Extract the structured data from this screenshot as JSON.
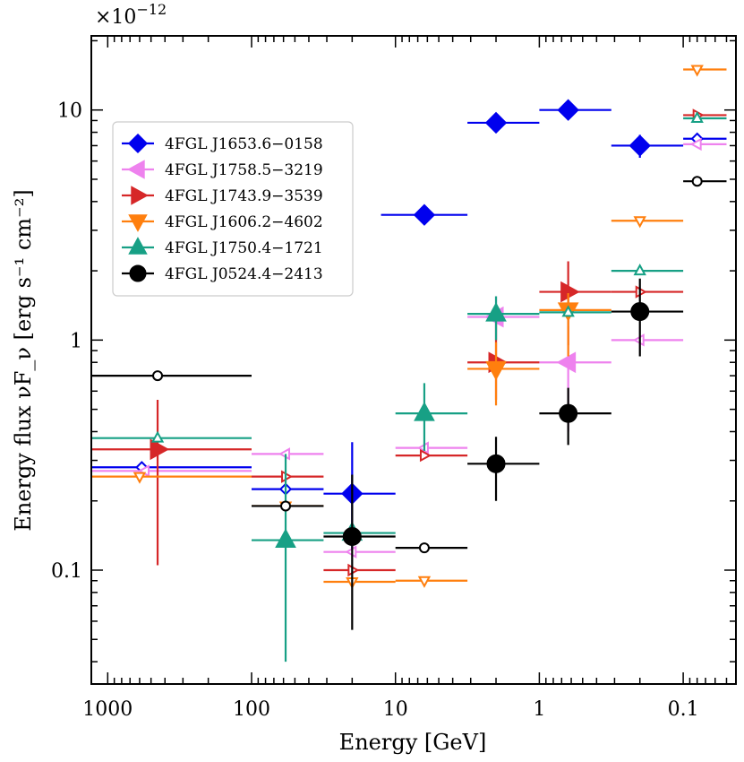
{
  "chart_data": {
    "type": "scatter",
    "title": "",
    "xlabel": "Energy [GeV]",
    "ylabel": "Energy flux νF_ν [erg s⁻¹ cm⁻²]",
    "y_multiplier_base": "×10",
    "y_multiplier_exp": "−12",
    "x_scale": "log",
    "y_scale": "log",
    "x_inverted": true,
    "xlim": [
      1300,
      0.043
    ],
    "ylim": [
      0.032,
      21
    ],
    "x_ticks": [
      {
        "value": 1000,
        "label": "1000"
      },
      {
        "value": 100,
        "label": "100"
      },
      {
        "value": 10,
        "label": "10"
      },
      {
        "value": 1,
        "label": "1"
      },
      {
        "value": 0.1,
        "label": "0.1"
      }
    ],
    "y_ticks": [
      {
        "value": 0.1,
        "label": "0.1"
      },
      {
        "value": 1,
        "label": "1"
      },
      {
        "value": 10,
        "label": "10"
      }
    ],
    "legend_position": "upper-left",
    "series": [
      {
        "name": "4FGL J1653.6−0158",
        "color": "#0000ee",
        "marker": "diamond",
        "points": [
          {
            "x": 6.3,
            "xlo": 3.16,
            "xhi": 12.6,
            "y": 3.5
          },
          {
            "x": 2.0,
            "xlo": 1.0,
            "xhi": 3.16,
            "y": 8.8
          },
          {
            "x": 0.63,
            "xlo": 0.316,
            "xhi": 1.0,
            "y": 10.0
          },
          {
            "x": 0.2,
            "xlo": 0.1,
            "xhi": 0.316,
            "y": 7.0,
            "ylo": 6.2,
            "yhi": 7.8
          },
          {
            "x": 20,
            "xlo": 10,
            "xhi": 31.6,
            "y": 0.215,
            "ylo": 0.12,
            "yhi": 0.36
          }
        ],
        "upper_limits": [
          {
            "x": 580,
            "xlo": 100,
            "xhi": 5000,
            "y": 0.28
          },
          {
            "x": 58,
            "xlo": 31.6,
            "xhi": 100,
            "y": 0.225
          },
          {
            "x": 0.08,
            "xlo": 0.05,
            "xhi": 0.1,
            "y": 7.5
          }
        ]
      },
      {
        "name": "4FGL J1758.5−3219",
        "color": "#ee82ee",
        "marker": "triangle-left",
        "points": [
          {
            "x": 2.0,
            "xlo": 1.0,
            "xhi": 3.16,
            "y": 1.26,
            "ylo": 1.0,
            "yhi": 1.55
          },
          {
            "x": 0.63,
            "xlo": 0.316,
            "xhi": 1.0,
            "y": 0.8,
            "ylo": 0.4,
            "yhi": 1.15
          }
        ],
        "upper_limits": [
          {
            "x": 550,
            "xlo": 100,
            "xhi": 5000,
            "y": 0.27
          },
          {
            "x": 58,
            "xlo": 31.6,
            "xhi": 100,
            "y": 0.32
          },
          {
            "x": 20,
            "xlo": 10,
            "xhi": 31.6,
            "y": 0.12
          },
          {
            "x": 6.3,
            "xlo": 3.16,
            "xhi": 10,
            "y": 0.34
          },
          {
            "x": 0.2,
            "xlo": 0.1,
            "xhi": 0.316,
            "y": 1.0
          },
          {
            "x": 0.08,
            "xlo": 0.05,
            "xhi": 0.1,
            "y": 7.1
          }
        ]
      },
      {
        "name": "4FGL J1743.9−3539",
        "color": "#d62728",
        "marker": "triangle-right",
        "points": [
          {
            "x": 450,
            "xlo": 100,
            "xhi": 5000,
            "y": 0.335,
            "ylo": 0.105,
            "yhi": 0.55
          },
          {
            "x": 2.0,
            "xlo": 1.0,
            "xhi": 3.16,
            "y": 0.8,
            "ylo": 0.55,
            "yhi": 1.2
          },
          {
            "x": 0.63,
            "xlo": 0.316,
            "xhi": 1.0,
            "y": 1.62,
            "ylo": 0.95,
            "yhi": 2.2
          }
        ],
        "upper_limits": [
          {
            "x": 58,
            "xlo": 31.6,
            "xhi": 100,
            "y": 0.255
          },
          {
            "x": 20,
            "xlo": 10,
            "xhi": 31.6,
            "y": 0.1
          },
          {
            "x": 6.3,
            "xlo": 3.16,
            "xhi": 10,
            "y": 0.315
          },
          {
            "x": 0.2,
            "xlo": 0.1,
            "xhi": 0.316,
            "y": 1.62
          },
          {
            "x": 0.08,
            "xlo": 0.05,
            "xhi": 0.1,
            "y": 9.5
          }
        ]
      },
      {
        "name": "4FGL J1606.2−4602",
        "color": "#ff7f0e",
        "marker": "triangle-down",
        "points": [
          {
            "x": 2.0,
            "xlo": 1.0,
            "xhi": 3.16,
            "y": 0.75,
            "ylo": 0.52,
            "yhi": 0.98
          },
          {
            "x": 0.63,
            "xlo": 0.316,
            "xhi": 1.0,
            "y": 1.35,
            "ylo": 0.85,
            "yhi": 1.6
          }
        ],
        "upper_limits": [
          {
            "x": 600,
            "xlo": 100,
            "xhi": 5000,
            "y": 0.255
          },
          {
            "x": 58,
            "xlo": 31.6,
            "xhi": 100,
            "y": 0.19
          },
          {
            "x": 20,
            "xlo": 10,
            "xhi": 31.6,
            "y": 0.089
          },
          {
            "x": 6.3,
            "xlo": 3.16,
            "xhi": 10,
            "y": 0.09
          },
          {
            "x": 0.2,
            "xlo": 0.1,
            "xhi": 0.316,
            "y": 3.3
          },
          {
            "x": 0.08,
            "xlo": 0.05,
            "xhi": 0.1,
            "y": 15
          }
        ]
      },
      {
        "name": "4FGL J1750.4−1721",
        "color": "#17a085",
        "marker": "triangle-up",
        "points": [
          {
            "x": 58,
            "xlo": 31.6,
            "xhi": 100,
            "y": 0.135,
            "ylo": 0.04,
            "yhi": 0.32
          },
          {
            "x": 20,
            "xlo": 10,
            "xhi": 31.6,
            "y": 0.145
          },
          {
            "x": 6.3,
            "xlo": 3.16,
            "xhi": 10,
            "y": 0.48,
            "ylo": 0.33,
            "yhi": 0.65
          },
          {
            "x": 2.0,
            "xlo": 1.0,
            "xhi": 3.16,
            "y": 1.3,
            "ylo": 1.0,
            "yhi": 1.55
          }
        ],
        "upper_limits": [
          {
            "x": 450,
            "xlo": 100,
            "xhi": 5000,
            "y": 0.375
          },
          {
            "x": 0.63,
            "xlo": 0.316,
            "xhi": 1.0,
            "y": 1.32
          },
          {
            "x": 0.2,
            "xlo": 0.1,
            "xhi": 0.316,
            "y": 2.0
          },
          {
            "x": 0.08,
            "xlo": 0.05,
            "xhi": 0.1,
            "y": 9.2
          }
        ]
      },
      {
        "name": "4FGL J0524.4−2413",
        "color": "#000000",
        "marker": "circle",
        "points": [
          {
            "x": 20,
            "xlo": 10,
            "xhi": 31.6,
            "y": 0.14,
            "ylo": 0.055,
            "yhi": 0.26
          },
          {
            "x": 2.0,
            "xlo": 1.0,
            "xhi": 3.16,
            "y": 0.29,
            "ylo": 0.2,
            "yhi": 0.38
          },
          {
            "x": 0.63,
            "xlo": 0.316,
            "xhi": 1.0,
            "y": 0.48,
            "ylo": 0.35,
            "yhi": 0.62
          },
          {
            "x": 0.2,
            "xlo": 0.1,
            "xhi": 0.316,
            "y": 1.33,
            "ylo": 0.85,
            "yhi": 1.85
          }
        ],
        "upper_limits": [
          {
            "x": 450,
            "xlo": 100,
            "xhi": 5000,
            "y": 0.7
          },
          {
            "x": 58,
            "xlo": 31.6,
            "xhi": 100,
            "y": 0.19
          },
          {
            "x": 6.3,
            "xlo": 3.16,
            "xhi": 10,
            "y": 0.125
          },
          {
            "x": 0.08,
            "xlo": 0.05,
            "xhi": 0.1,
            "y": 4.9
          }
        ]
      }
    ]
  }
}
